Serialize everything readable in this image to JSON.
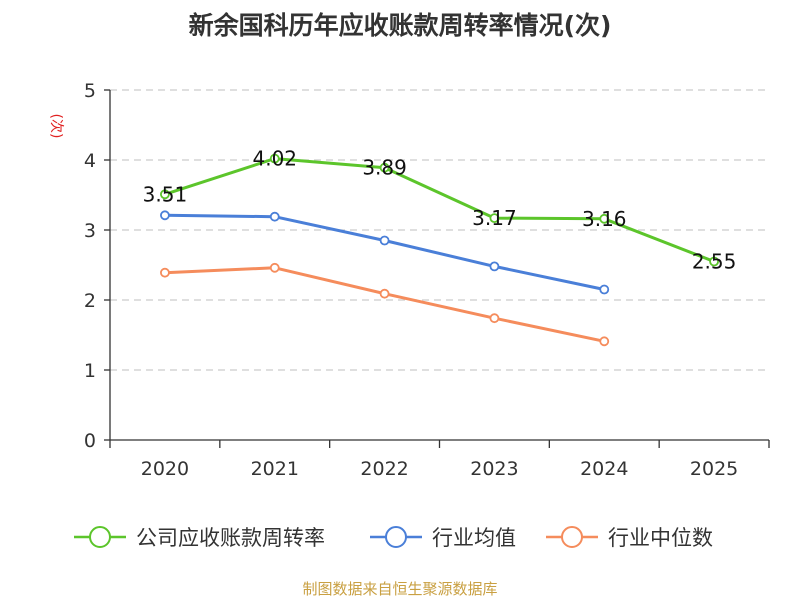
{
  "chart_data": {
    "type": "line",
    "title": "新余国科历年应收账款周转率情况(次)",
    "ylabel": "(次)",
    "ylim": [
      0,
      5
    ],
    "yticks": [
      0,
      1,
      2,
      3,
      4,
      5
    ],
    "categories": [
      "2020",
      "2021",
      "2022",
      "2023",
      "2024",
      "2025"
    ],
    "grid": true,
    "legend_position": "bottom",
    "series": [
      {
        "name": "公司应收账款周转率",
        "color": "#5cc52b",
        "values": [
          3.51,
          4.02,
          3.89,
          3.17,
          3.16,
          2.55
        ],
        "show_labels": true
      },
      {
        "name": "行业均值",
        "color": "#4a7fd8",
        "values": [
          3.21,
          3.19,
          2.85,
          2.48,
          2.15,
          null
        ],
        "show_labels": false
      },
      {
        "name": "行业中位数",
        "color": "#f58c5c",
        "values": [
          2.39,
          2.46,
          2.09,
          1.74,
          1.41,
          null
        ],
        "show_labels": false
      }
    ]
  },
  "colors": {
    "unit_label": "#e02020",
    "source_text": "#c9a042",
    "grid": "#cccccc",
    "axis": "#333333"
  },
  "source": "制图数据来自恒生聚源数据库"
}
